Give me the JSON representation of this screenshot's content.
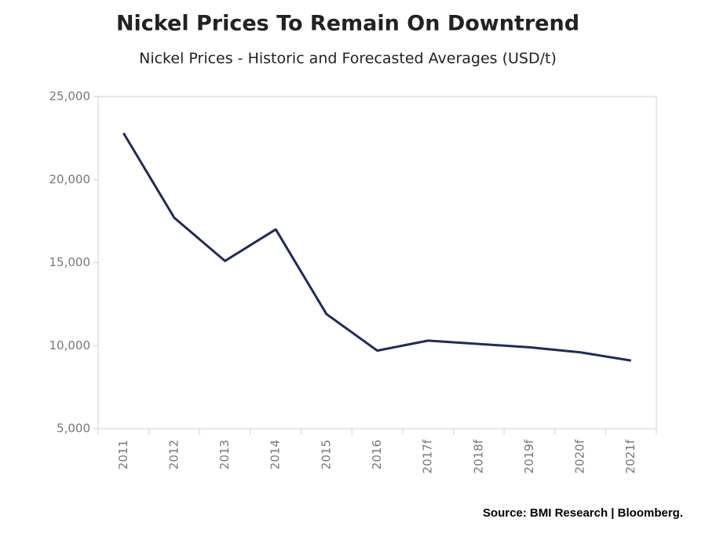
{
  "chart_data": {
    "type": "line",
    "title": "Nickel Prices To Remain On Downtrend",
    "subtitle": "Nickel Prices - Historic and Forecasted Averages (USD/t)",
    "source": "Source: BMI Research | Bloomberg.",
    "categories": [
      "2011",
      "2012",
      "2013",
      "2014",
      "2015",
      "2016",
      "2017f",
      "2018f",
      "2019f",
      "2020f",
      "2021f"
    ],
    "series": [
      {
        "name": "Nickel Price",
        "color": "#1f2a5c",
        "values": [
          22800,
          17700,
          15100,
          17000,
          11900,
          9700,
          10300,
          10100,
          9900,
          9600,
          9100
        ]
      }
    ],
    "ylim": [
      5000,
      25000
    ],
    "yticks": [
      {
        "value": 5000,
        "label": "5,000"
      },
      {
        "value": 10000,
        "label": "10,000"
      },
      {
        "value": 15000,
        "label": "15,000"
      },
      {
        "value": 20000,
        "label": "20,000"
      },
      {
        "value": 25000,
        "label": "25,000"
      }
    ],
    "grid": false
  }
}
